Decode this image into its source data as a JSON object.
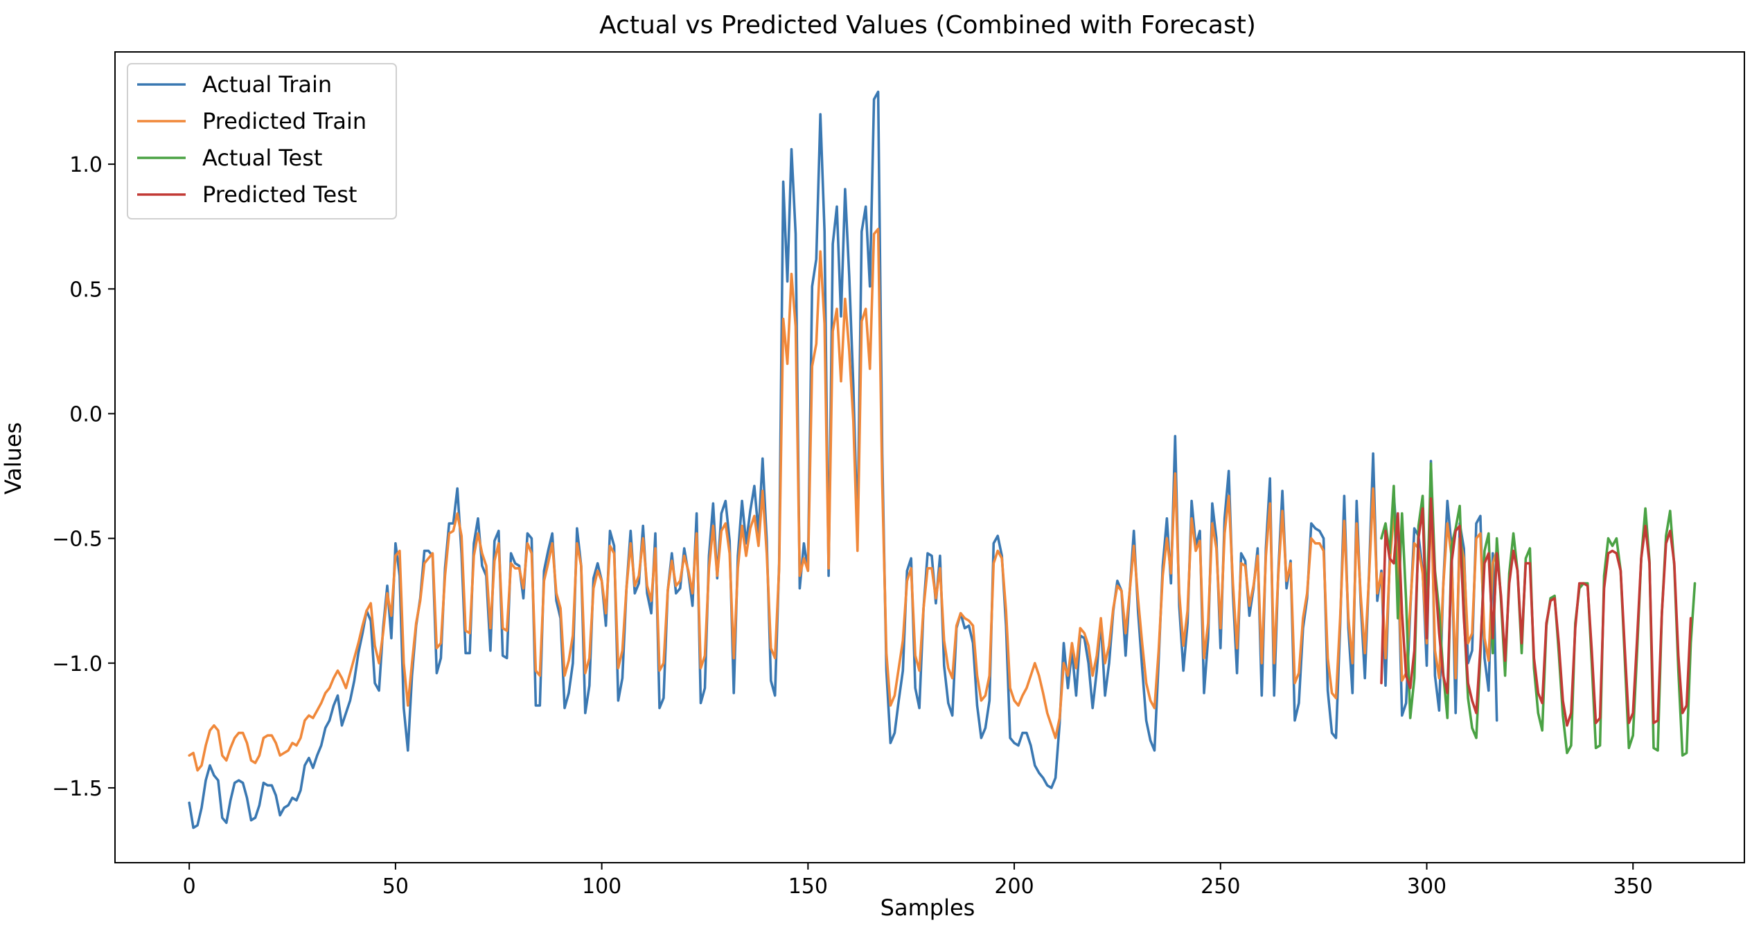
{
  "chart_data": {
    "type": "line",
    "title": "Actual vs Predicted Values (Combined with Forecast)",
    "xlabel": "Samples",
    "ylabel": "Values",
    "xlim": [
      -18,
      377
    ],
    "ylim": [
      -1.8,
      1.45
    ],
    "xticks": [
      0,
      50,
      100,
      150,
      200,
      250,
      300,
      350
    ],
    "yticks": [
      -1.5,
      -1.0,
      -0.5,
      0.0,
      0.5,
      1.0
    ],
    "ytick_labels": [
      "−1.5",
      "−1.0",
      "−0.5",
      "0.0",
      "0.5",
      "1.0"
    ],
    "grid": false,
    "legend_position": "top-left",
    "series": [
      {
        "name": "Actual Train",
        "color": "#3a78b2",
        "x_start": 0,
        "values": [
          -1.56,
          -1.66,
          -1.65,
          -1.58,
          -1.47,
          -1.41,
          -1.45,
          -1.47,
          -1.62,
          -1.64,
          -1.55,
          -1.48,
          -1.47,
          -1.48,
          -1.54,
          -1.63,
          -1.62,
          -1.57,
          -1.48,
          -1.49,
          -1.49,
          -1.53,
          -1.61,
          -1.58,
          -1.57,
          -1.54,
          -1.55,
          -1.51,
          -1.41,
          -1.38,
          -1.42,
          -1.37,
          -1.33,
          -1.26,
          -1.23,
          -1.17,
          -1.13,
          -1.25,
          -1.2,
          -1.15,
          -1.07,
          -0.96,
          -0.88,
          -0.79,
          -0.83,
          -1.08,
          -1.11,
          -0.86,
          -0.69,
          -0.9,
          -0.52,
          -0.65,
          -1.18,
          -1.35,
          -1.05,
          -0.85,
          -0.74,
          -0.55,
          -0.55,
          -0.57,
          -1.04,
          -0.98,
          -0.62,
          -0.44,
          -0.44,
          -0.3,
          -0.56,
          -0.96,
          -0.96,
          -0.52,
          -0.42,
          -0.61,
          -0.65,
          -0.95,
          -0.51,
          -0.47,
          -0.97,
          -0.98,
          -0.56,
          -0.6,
          -0.61,
          -0.74,
          -0.48,
          -0.5,
          -1.17,
          -1.17,
          -0.63,
          -0.55,
          -0.48,
          -0.75,
          -0.82,
          -1.18,
          -1.12,
          -1.0,
          -0.46,
          -0.61,
          -1.2,
          -1.09,
          -0.66,
          -0.6,
          -0.67,
          -0.85,
          -0.47,
          -0.53,
          -1.15,
          -1.06,
          -0.7,
          -0.47,
          -0.72,
          -0.68,
          -0.45,
          -0.72,
          -0.8,
          -0.48,
          -1.18,
          -1.14,
          -0.71,
          -0.56,
          -0.72,
          -0.7,
          -0.54,
          -0.64,
          -0.77,
          -0.4,
          -1.16,
          -1.1,
          -0.57,
          -0.36,
          -0.66,
          -0.4,
          -0.35,
          -0.51,
          -1.12,
          -0.57,
          -0.35,
          -0.52,
          -0.39,
          -0.29,
          -0.48,
          -0.18,
          -0.51,
          -1.07,
          -1.13,
          -0.6,
          0.93,
          0.53,
          1.06,
          0.72,
          -0.7,
          -0.52,
          -0.63,
          0.51,
          0.62,
          1.2,
          0.73,
          -0.65,
          0.68,
          0.83,
          0.39,
          0.9,
          0.55,
          0.11,
          -0.49,
          0.73,
          0.83,
          0.51,
          1.26,
          1.29,
          -0.16,
          -1.03,
          -1.32,
          -1.28,
          -1.15,
          -1.03,
          -0.63,
          -0.58,
          -1.1,
          -1.18,
          -0.78,
          -0.56,
          -0.57,
          -0.76,
          -0.57,
          -1.01,
          -1.16,
          -1.21,
          -0.86,
          -0.8,
          -0.86,
          -0.85,
          -0.92,
          -1.17,
          -1.3,
          -1.26,
          -1.15,
          -0.52,
          -0.49,
          -0.57,
          -0.85,
          -1.3,
          -1.32,
          -1.33,
          -1.28,
          -1.28,
          -1.33,
          -1.41,
          -1.44,
          -1.46,
          -1.49,
          -1.5,
          -1.46,
          -1.24,
          -0.92,
          -1.1,
          -0.95,
          -1.13,
          -0.89,
          -0.9,
          -1.0,
          -1.18,
          -1.03,
          -0.83,
          -1.13,
          -1.0,
          -0.79,
          -0.67,
          -0.71,
          -0.97,
          -0.71,
          -0.47,
          -0.79,
          -1.02,
          -1.23,
          -1.31,
          -1.35,
          -0.99,
          -0.61,
          -0.42,
          -0.68,
          -0.09,
          -0.77,
          -1.03,
          -0.84,
          -0.35,
          -0.53,
          -0.47,
          -1.12,
          -0.9,
          -0.36,
          -0.5,
          -0.94,
          -0.42,
          -0.23,
          -0.72,
          -1.04,
          -0.56,
          -0.59,
          -0.81,
          -0.7,
          -0.54,
          -1.13,
          -0.54,
          -0.26,
          -1.13,
          -0.64,
          -0.31,
          -0.7,
          -0.59,
          -1.23,
          -1.16,
          -0.86,
          -0.74,
          -0.44,
          -0.46,
          -0.47,
          -0.5,
          -1.11,
          -1.28,
          -1.3,
          -0.85,
          -0.33,
          -0.86,
          -1.12,
          -0.35,
          -0.76,
          -1.06,
          -0.65,
          -0.16,
          -0.75,
          -0.63,
          -1.09,
          -0.59,
          -0.32,
          -0.56,
          -1.21,
          -1.16,
          -0.79,
          -0.46,
          -0.49,
          -0.63,
          -1.01,
          -0.19,
          -1.05,
          -1.19,
          -0.69,
          -0.35,
          -0.53,
          -1.2,
          -0.44,
          -0.54,
          -1.0,
          -0.95,
          -0.44,
          -0.41,
          -0.98,
          -1.11,
          -0.56,
          -1.23
        ]
      },
      {
        "name": "Predicted Train",
        "color": "#f0883a",
        "x_start": 0,
        "values": [
          -1.37,
          -1.36,
          -1.43,
          -1.41,
          -1.33,
          -1.27,
          -1.25,
          -1.27,
          -1.37,
          -1.39,
          -1.34,
          -1.3,
          -1.28,
          -1.28,
          -1.32,
          -1.39,
          -1.4,
          -1.37,
          -1.3,
          -1.29,
          -1.29,
          -1.32,
          -1.37,
          -1.36,
          -1.35,
          -1.32,
          -1.33,
          -1.3,
          -1.23,
          -1.21,
          -1.22,
          -1.19,
          -1.16,
          -1.12,
          -1.1,
          -1.06,
          -1.03,
          -1.06,
          -1.1,
          -1.04,
          -0.98,
          -0.92,
          -0.85,
          -0.79,
          -0.76,
          -0.93,
          -1.0,
          -0.88,
          -0.72,
          -0.81,
          -0.57,
          -0.55,
          -1.0,
          -1.17,
          -1.0,
          -0.84,
          -0.75,
          -0.6,
          -0.58,
          -0.56,
          -0.94,
          -0.92,
          -0.65,
          -0.48,
          -0.47,
          -0.4,
          -0.49,
          -0.87,
          -0.88,
          -0.57,
          -0.48,
          -0.56,
          -0.61,
          -0.86,
          -0.59,
          -0.52,
          -0.86,
          -0.87,
          -0.6,
          -0.62,
          -0.62,
          -0.7,
          -0.52,
          -0.56,
          -1.03,
          -1.05,
          -0.67,
          -0.6,
          -0.52,
          -0.72,
          -0.78,
          -1.05,
          -0.99,
          -0.89,
          -0.52,
          -0.61,
          -1.04,
          -0.98,
          -0.7,
          -0.63,
          -0.67,
          -0.8,
          -0.53,
          -0.56,
          -1.02,
          -0.95,
          -0.7,
          -0.52,
          -0.69,
          -0.65,
          -0.5,
          -0.69,
          -0.75,
          -0.54,
          -1.03,
          -1.0,
          -0.71,
          -0.59,
          -0.69,
          -0.67,
          -0.57,
          -0.63,
          -0.72,
          -0.48,
          -1.02,
          -0.97,
          -0.62,
          -0.45,
          -0.65,
          -0.47,
          -0.44,
          -0.56,
          -0.98,
          -0.62,
          -0.45,
          -0.57,
          -0.46,
          -0.41,
          -0.53,
          -0.31,
          -0.56,
          -0.94,
          -0.98,
          -0.62,
          0.38,
          0.2,
          0.56,
          0.35,
          -0.65,
          -0.58,
          -0.63,
          0.19,
          0.28,
          0.65,
          0.36,
          -0.62,
          0.33,
          0.42,
          0.13,
          0.46,
          0.25,
          -0.03,
          -0.55,
          0.37,
          0.42,
          0.18,
          0.72,
          0.74,
          -0.28,
          -0.96,
          -1.17,
          -1.13,
          -1.02,
          -0.91,
          -0.67,
          -0.62,
          -0.97,
          -1.03,
          -0.78,
          -0.62,
          -0.62,
          -0.74,
          -0.62,
          -0.91,
          -1.02,
          -1.06,
          -0.85,
          -0.8,
          -0.82,
          -0.83,
          -0.85,
          -1.05,
          -1.15,
          -1.13,
          -1.05,
          -0.6,
          -0.55,
          -0.58,
          -0.79,
          -1.1,
          -1.15,
          -1.17,
          -1.13,
          -1.1,
          -1.05,
          -1.0,
          -1.05,
          -1.12,
          -1.2,
          -1.25,
          -1.3,
          -1.22,
          -1.0,
          -1.05,
          -0.92,
          -1.02,
          -0.86,
          -0.88,
          -0.93,
          -1.05,
          -0.97,
          -0.82,
          -1.0,
          -0.93,
          -0.78,
          -0.69,
          -0.71,
          -0.88,
          -0.71,
          -0.53,
          -0.74,
          -0.92,
          -1.08,
          -1.15,
          -1.18,
          -0.95,
          -0.65,
          -0.5,
          -0.64,
          -0.24,
          -0.72,
          -0.93,
          -0.79,
          -0.42,
          -0.55,
          -0.51,
          -0.98,
          -0.84,
          -0.44,
          -0.54,
          -0.86,
          -0.48,
          -0.33,
          -0.68,
          -0.94,
          -0.6,
          -0.61,
          -0.77,
          -0.69,
          -0.57,
          -1.0,
          -0.57,
          -0.36,
          -1.0,
          -0.65,
          -0.39,
          -0.67,
          -0.6,
          -1.08,
          -1.04,
          -0.82,
          -0.72,
          -0.5,
          -0.52,
          -0.52,
          -0.55,
          -0.98,
          -1.12,
          -1.14,
          -0.82,
          -0.43,
          -0.82,
          -1.0,
          -0.44,
          -0.73,
          -0.96,
          -0.66,
          -0.3,
          -0.72,
          -0.64,
          -0.98,
          -0.61,
          -0.4,
          -0.59,
          -1.07,
          -1.04,
          -0.77,
          -0.52,
          -0.54,
          -0.64,
          -0.92,
          -0.32,
          -0.95,
          -1.06,
          -0.69,
          -0.44,
          -0.57,
          -1.06,
          -0.5,
          -0.58,
          -0.92,
          -0.88,
          -0.5,
          -0.48,
          -0.9,
          -0.99,
          -0.6,
          -0.55
        ]
      },
      {
        "name": "Actual Test",
        "color": "#4aa244",
        "x_start": 289,
        "values": [
          -0.5,
          -0.44,
          -0.56,
          -0.29,
          -0.82,
          -0.4,
          -0.75,
          -1.22,
          -1.06,
          -0.45,
          -0.33,
          -0.8,
          -0.2,
          -0.63,
          -0.79,
          -1.04,
          -1.22,
          -0.53,
          -0.46,
          -0.37,
          -0.8,
          -1.14,
          -1.26,
          -1.3,
          -0.97,
          -0.55,
          -0.48,
          -0.96,
          -0.5,
          -0.75,
          -1.05,
          -0.64,
          -0.48,
          -0.63,
          -0.96,
          -0.58,
          -0.54,
          -1.02,
          -1.2,
          -1.27,
          -0.85,
          -0.74,
          -0.73,
          -0.96,
          -1.21,
          -1.36,
          -1.33,
          -0.84,
          -0.7,
          -0.68,
          -0.68,
          -1.0,
          -1.34,
          -1.33,
          -0.65,
          -0.5,
          -0.53,
          -0.5,
          -0.63,
          -0.98,
          -1.34,
          -1.29,
          -0.95,
          -0.58,
          -0.38,
          -0.59,
          -1.34,
          -1.35,
          -0.8,
          -0.49,
          -0.39,
          -0.61,
          -1.03,
          -1.37,
          -1.36,
          -0.92,
          -0.68
        ]
      },
      {
        "name": "Predicted Test",
        "color": "#c23a35",
        "x_start": 289,
        "values": [
          -1.08,
          -0.47,
          -0.58,
          -0.6,
          -0.4,
          -0.8,
          -1.05,
          -1.1,
          -0.95,
          -0.5,
          -0.38,
          -0.9,
          -0.34,
          -0.65,
          -0.88,
          -1.05,
          -1.12,
          -0.6,
          -0.47,
          -0.45,
          -0.82,
          -1.08,
          -1.15,
          -1.2,
          -0.94,
          -0.6,
          -0.56,
          -0.9,
          -0.56,
          -0.73,
          -0.99,
          -0.68,
          -0.55,
          -0.63,
          -0.92,
          -0.6,
          -0.6,
          -0.98,
          -1.12,
          -1.16,
          -0.84,
          -0.75,
          -0.74,
          -0.92,
          -1.15,
          -1.25,
          -1.2,
          -0.86,
          -0.68,
          -0.68,
          -0.69,
          -0.95,
          -1.24,
          -1.22,
          -0.7,
          -0.56,
          -0.55,
          -0.56,
          -0.63,
          -0.94,
          -1.24,
          -1.2,
          -0.9,
          -0.58,
          -0.45,
          -0.6,
          -1.24,
          -1.23,
          -0.8,
          -0.52,
          -0.47,
          -0.6,
          -0.97,
          -1.2,
          -1.17,
          -0.82
        ]
      }
    ]
  }
}
